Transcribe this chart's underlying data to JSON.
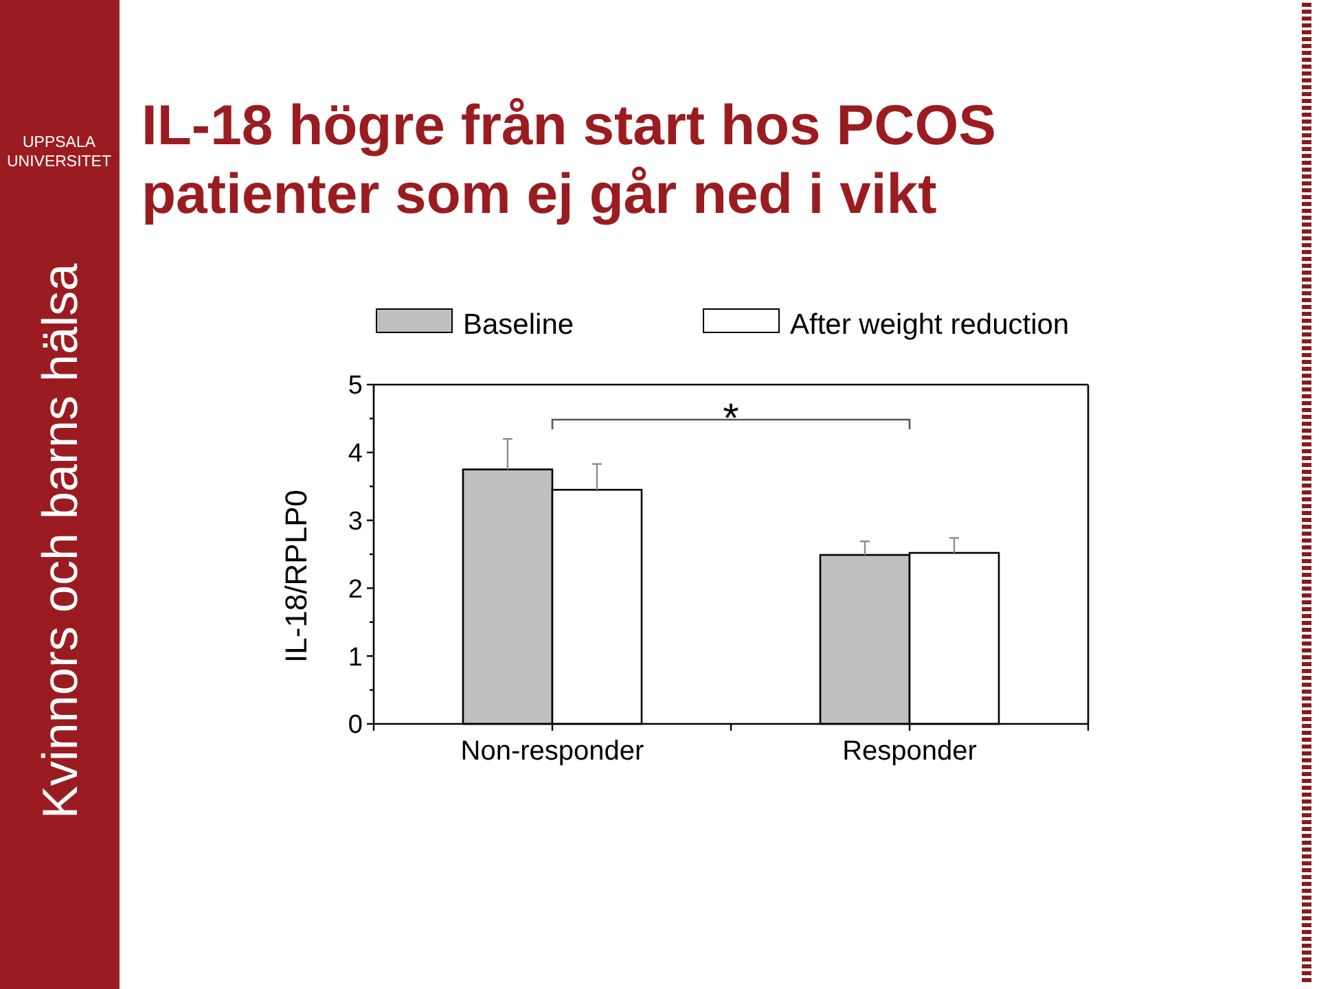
{
  "chart_data": {
    "type": "bar",
    "title": "IL-18 högre från start hos PCOS patienter som ej går ned i vikt",
    "ylabel": "IL-18/RPLP0",
    "categories": [
      "Non-responder",
      "Responder"
    ],
    "series": [
      {
        "name": "Baseline",
        "color": "#c0c0c0",
        "values": [
          3.75,
          2.49
        ],
        "errors": [
          [
            3.75,
            4.2
          ],
          [
            2.49,
            2.69
          ]
        ]
      },
      {
        "name": "After weight reduction",
        "color": "#ffffff",
        "values": [
          3.45,
          2.52
        ],
        "errors": [
          [
            3.45,
            3.83
          ],
          [
            2.52,
            2.74
          ]
        ]
      }
    ],
    "ylim": [
      0,
      5
    ],
    "yticks": [
      0,
      {
        "value": 0.5,
        "label": null
      },
      1,
      {
        "value": 1.5,
        "label": null
      },
      2,
      {
        "value": 2.5,
        "label": null
      },
      3,
      {
        "value": 3.5,
        "label": null
      },
      4,
      {
        "value": 4.5,
        "label": null
      },
      5
    ],
    "legend": "top",
    "annotations": [
      "*",
      "Kvinnors och barns hälsa",
      "UPPSALA UNIVERSITET"
    ]
  }
}
